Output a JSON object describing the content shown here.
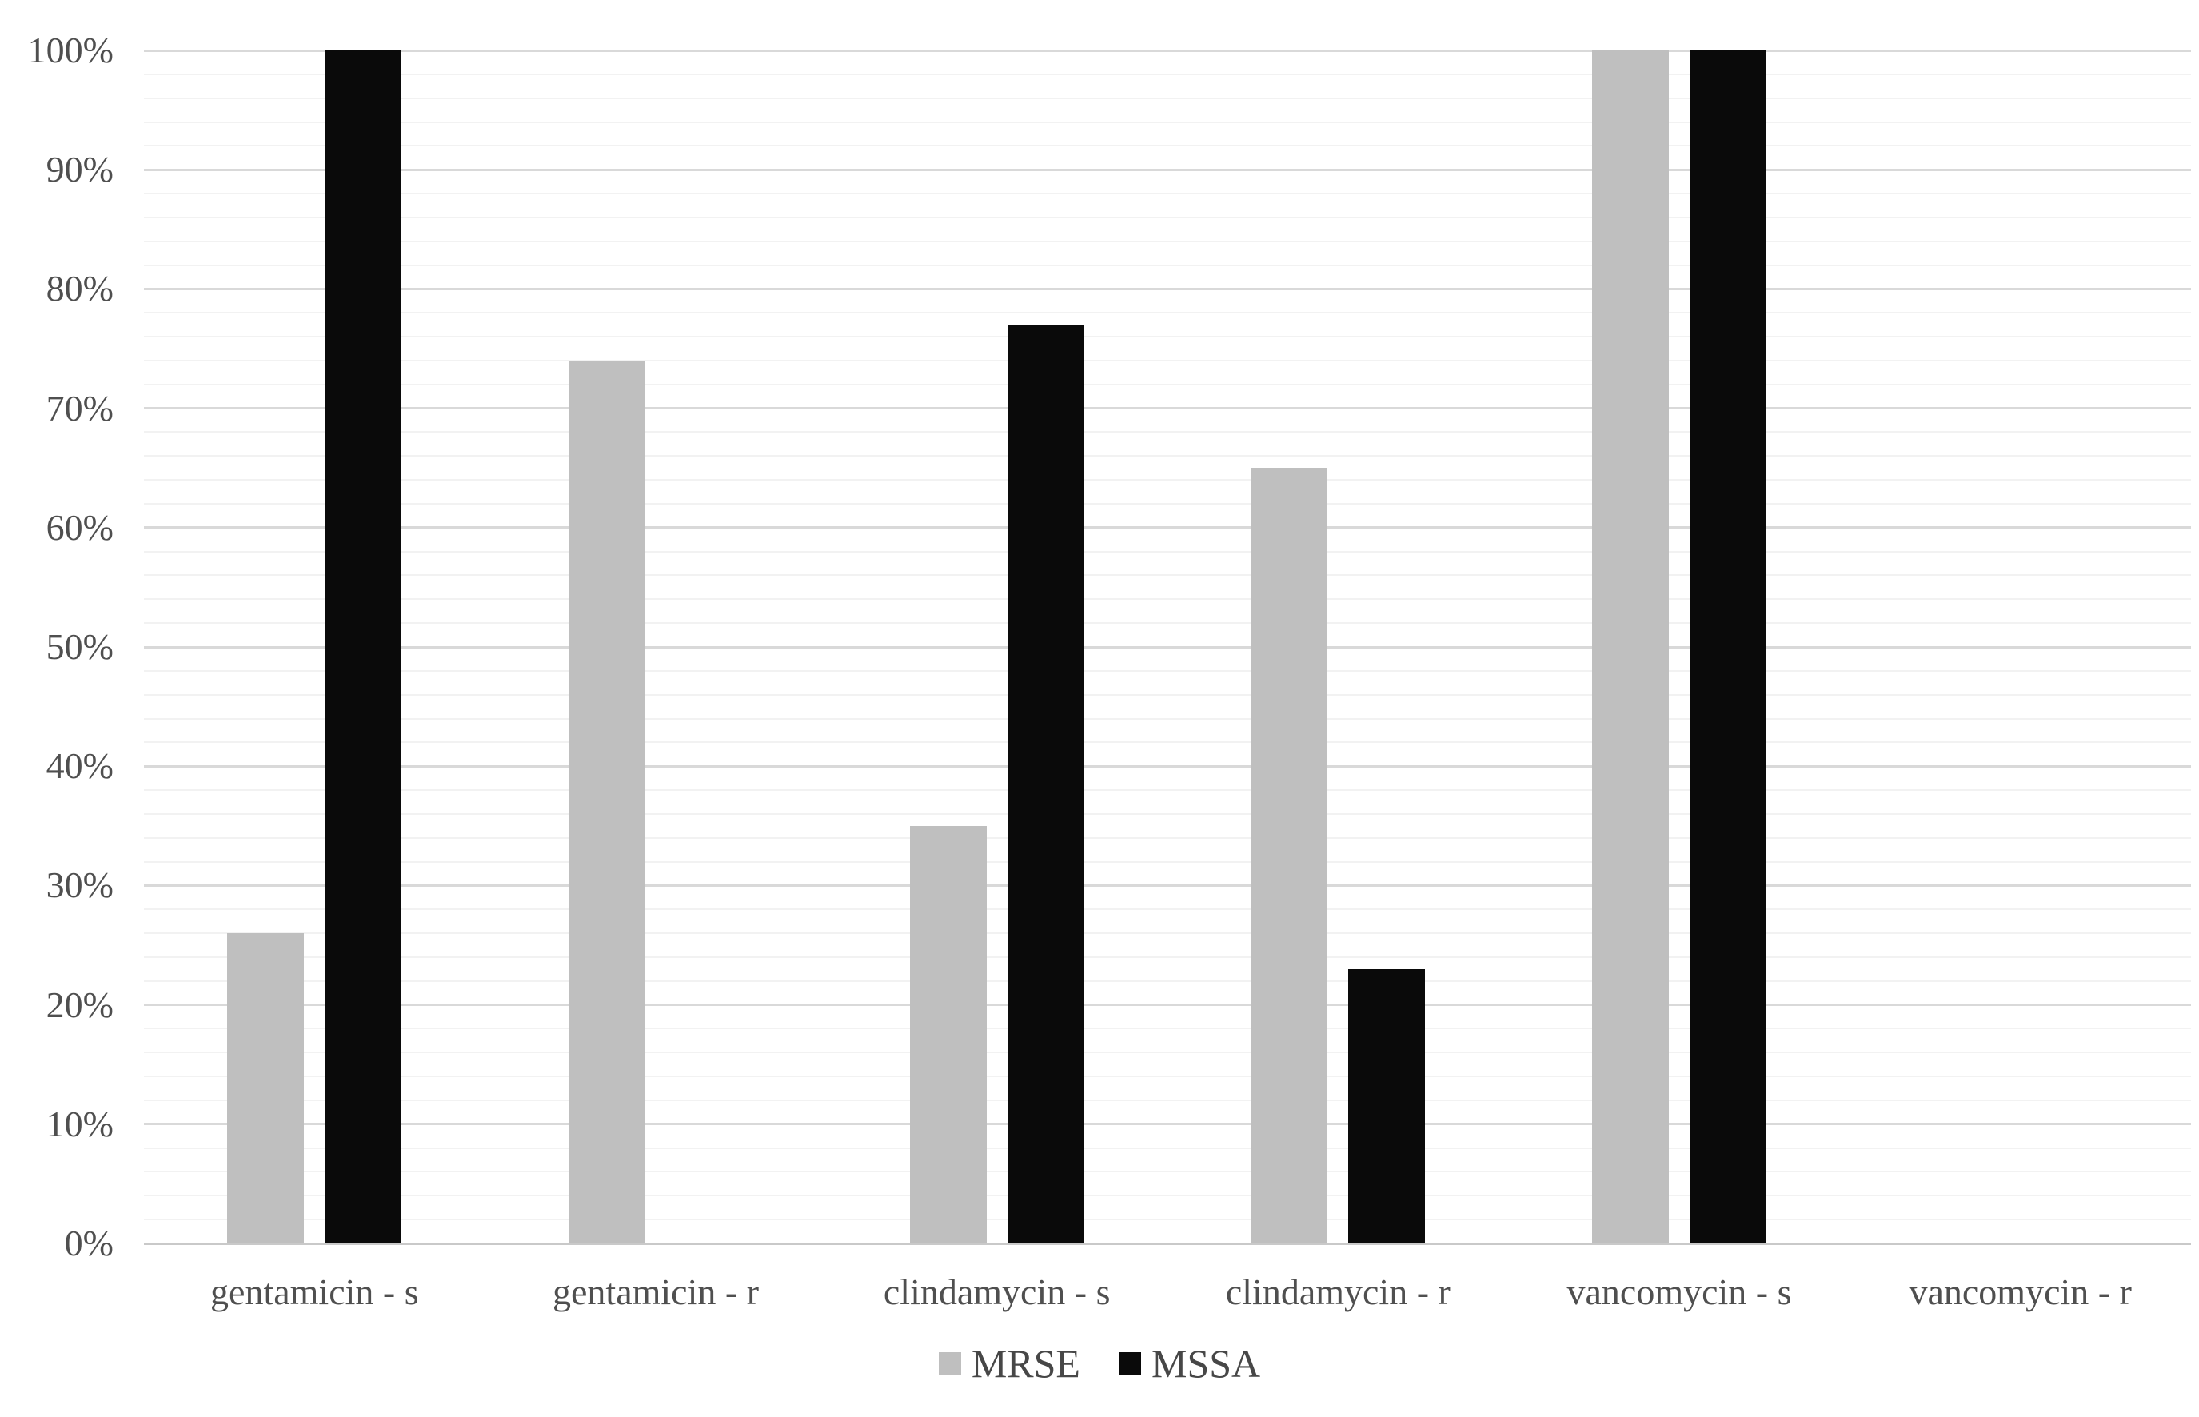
{
  "chart_data": {
    "type": "bar",
    "title": "",
    "xlabel": "",
    "ylabel": "",
    "categories": [
      "gentamicin - s",
      "gentamicin - r",
      "clindamycin - s",
      "clindamycin - r",
      "vancomycin - s",
      "vancomycin - r"
    ],
    "series": [
      {
        "name": "MRSE",
        "color": "#bfbfbf",
        "values": [
          26,
          74,
          35,
          65,
          100,
          0
        ]
      },
      {
        "name": "MSSA",
        "color": "#0a0a0a",
        "values": [
          100,
          0,
          77,
          23,
          100,
          0
        ]
      }
    ],
    "ylim": [
      0,
      100
    ],
    "y_ticks": [
      "0%",
      "10%",
      "20%",
      "30%",
      "40%",
      "50%",
      "60%",
      "70%",
      "80%",
      "90%",
      "100%"
    ],
    "y_major_step": 10,
    "y_minor_step": 2,
    "grid": true,
    "legend_position": "bottom-center"
  }
}
